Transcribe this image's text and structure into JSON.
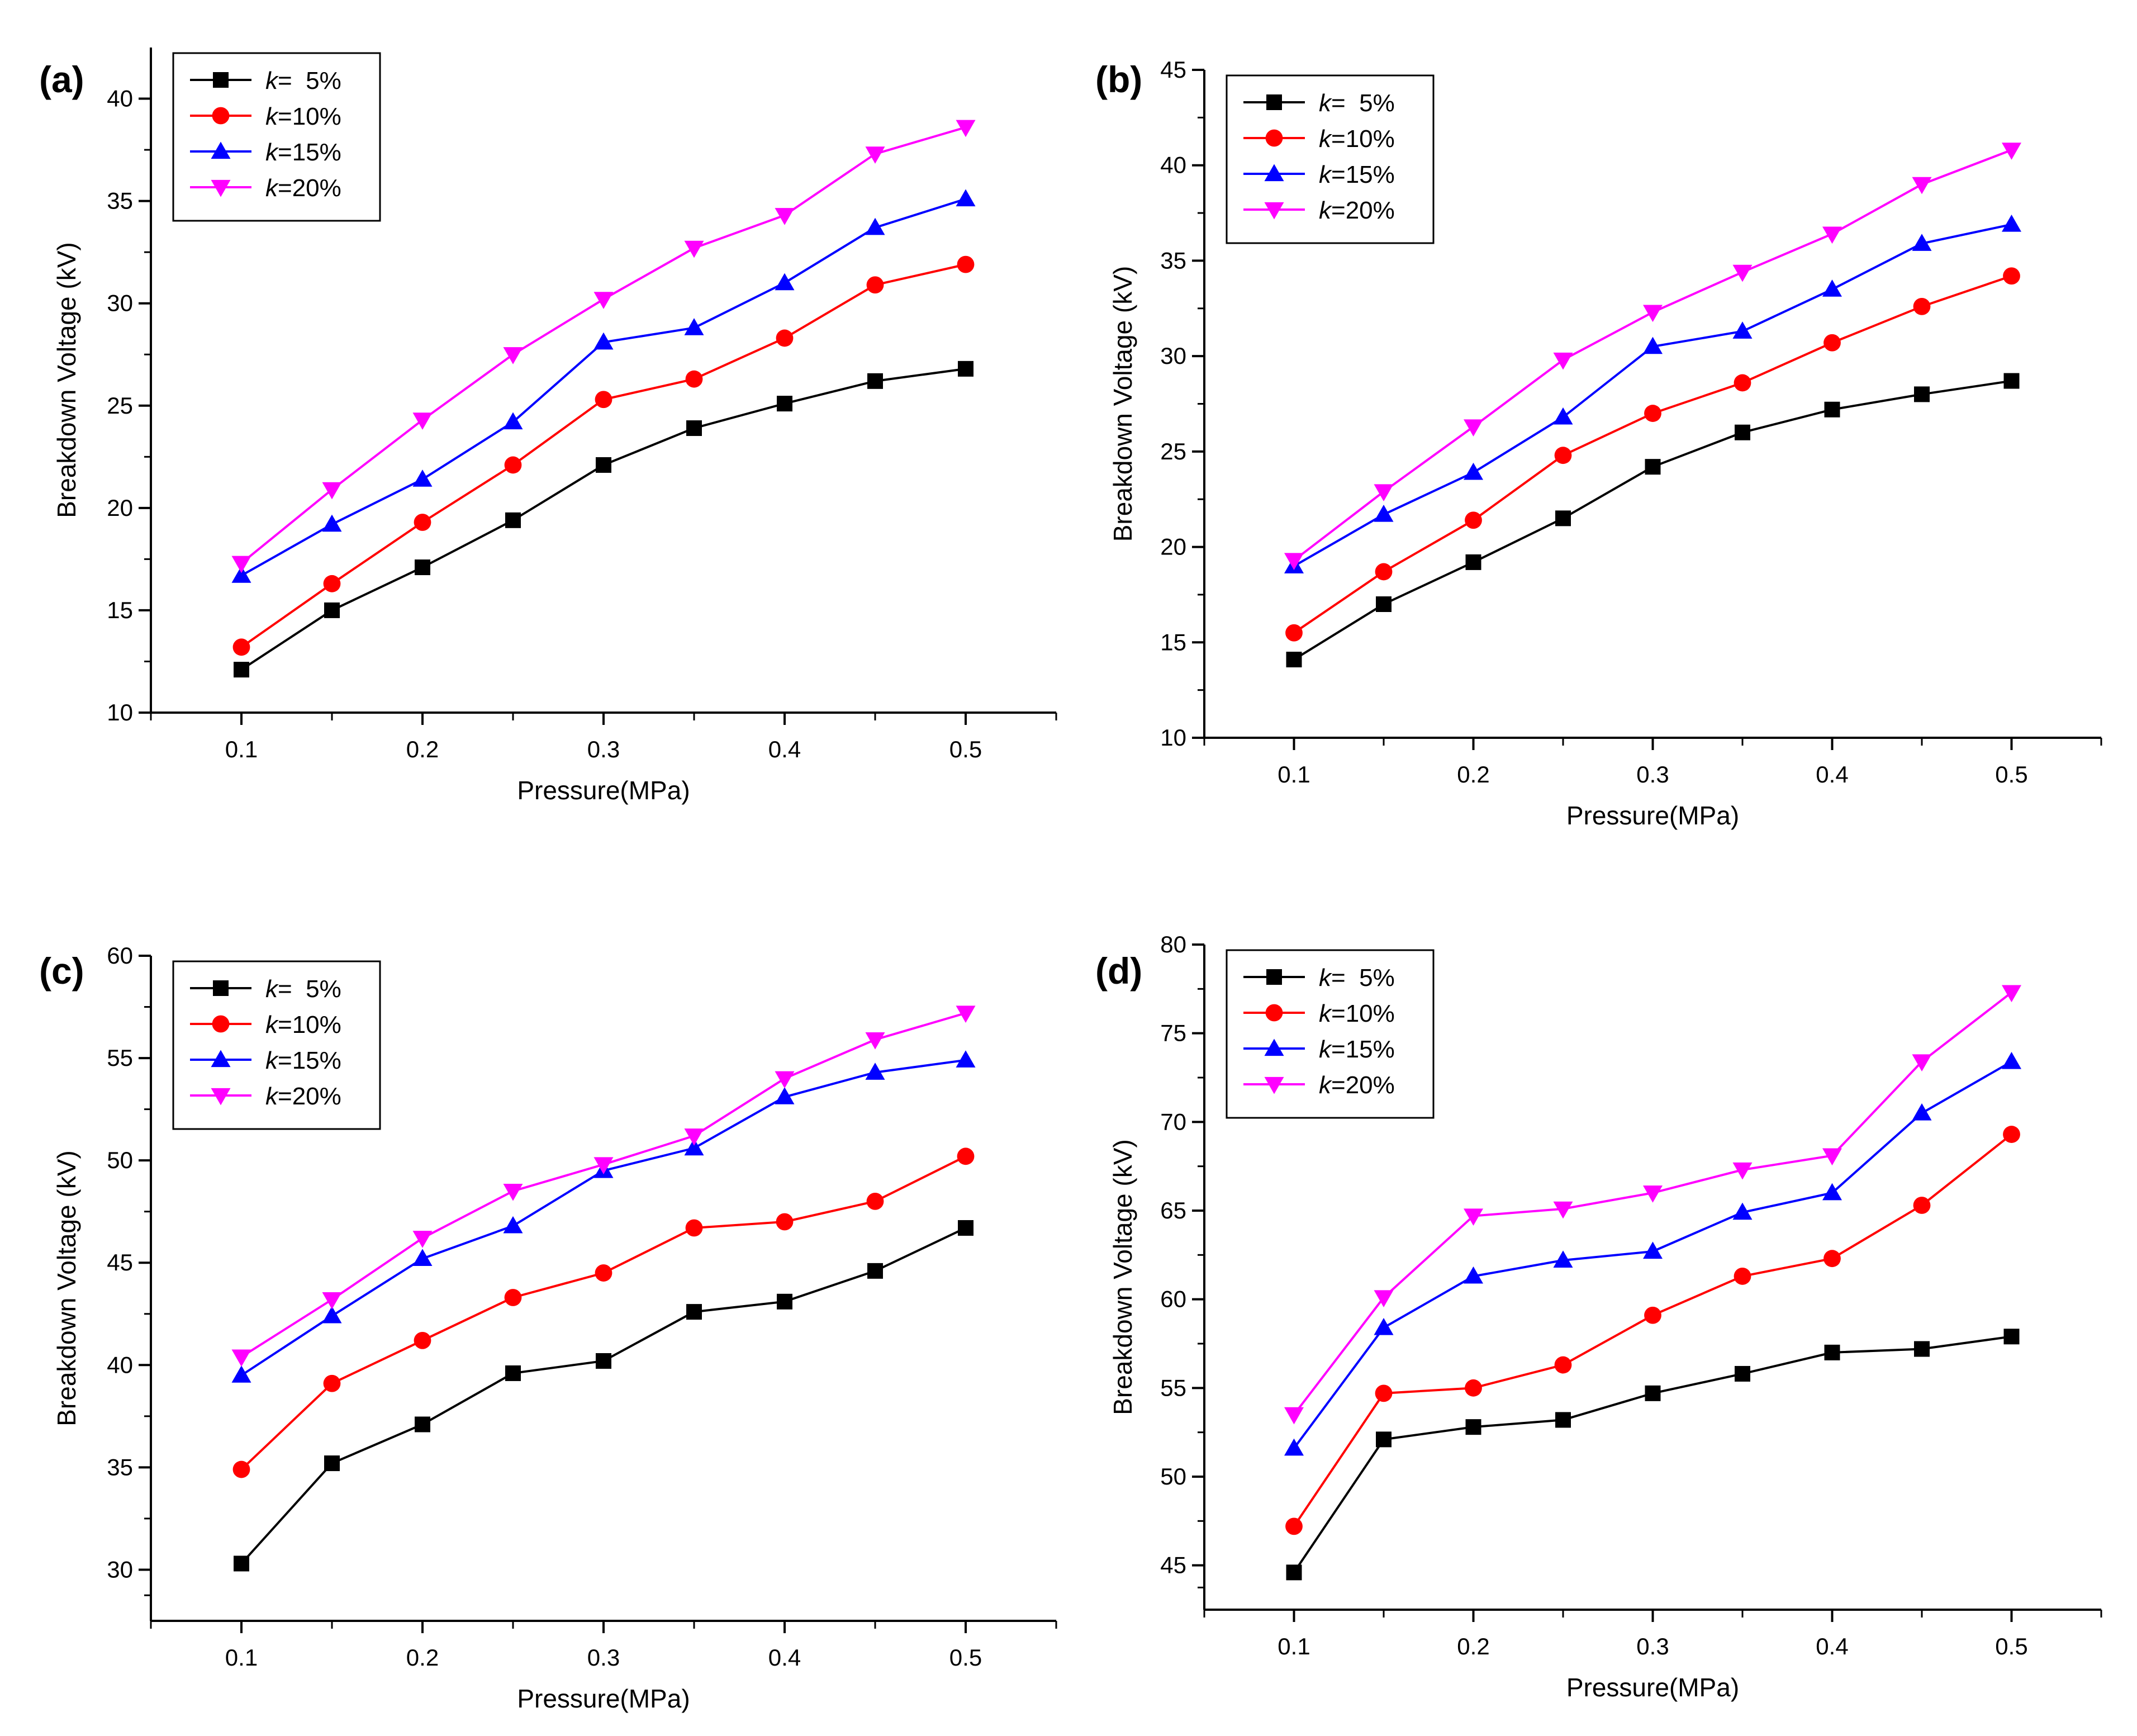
{
  "figure": {
    "xlabel": "Pressure(MPa)",
    "ylabel": "Breakdown Voltage (kV)"
  },
  "chart_data": [
    {
      "type": "line",
      "panel": "(a)",
      "x": [
        0.1,
        0.15,
        0.2,
        0.25,
        0.3,
        0.35,
        0.4,
        0.45,
        0.5
      ],
      "xticks": [
        0.1,
        0.2,
        0.3,
        0.4,
        0.5
      ],
      "xlim": [
        0.05,
        0.55
      ],
      "ylim": [
        10,
        42.5
      ],
      "yticks": [
        10,
        15,
        20,
        25,
        30,
        35,
        40
      ],
      "xlabel": "Pressure(MPa)",
      "ylabel": "Breakdown Voltage (kV)",
      "legend_position": "top-left",
      "series": [
        {
          "name": "k=  5%",
          "prefix": "k",
          "suffix": "=  5%",
          "color": "#000000",
          "marker": "square",
          "values": [
            12.1,
            15.0,
            17.1,
            19.4,
            22.1,
            23.9,
            25.1,
            26.2,
            26.8
          ]
        },
        {
          "name": "k=10%",
          "prefix": "k",
          "suffix": "=10%",
          "color": "#ff0000",
          "marker": "circle",
          "values": [
            13.2,
            16.3,
            19.3,
            22.1,
            25.3,
            26.3,
            28.3,
            30.9,
            31.9
          ]
        },
        {
          "name": "k=15%",
          "prefix": "k",
          "suffix": "=15%",
          "color": "#0000ff",
          "marker": "triangle-up",
          "values": [
            16.7,
            19.2,
            21.4,
            24.2,
            28.1,
            28.8,
            31.0,
            33.7,
            35.1
          ]
        },
        {
          "name": "k=20%",
          "prefix": "k",
          "suffix": "=20%",
          "color": "#ff00ff",
          "marker": "triangle-down",
          "values": [
            17.3,
            20.9,
            24.3,
            27.5,
            30.2,
            32.7,
            34.3,
            37.3,
            38.6
          ]
        }
      ]
    },
    {
      "type": "line",
      "panel": "(b)",
      "x": [
        0.1,
        0.15,
        0.2,
        0.25,
        0.3,
        0.35,
        0.4,
        0.45,
        0.5
      ],
      "xticks": [
        0.1,
        0.2,
        0.3,
        0.4,
        0.5
      ],
      "xlim": [
        0.05,
        0.55
      ],
      "ylim": [
        10,
        45
      ],
      "yticks": [
        10,
        15,
        20,
        25,
        30,
        35,
        40,
        45
      ],
      "xlabel": "Pressure(MPa)",
      "ylabel": "Breakdown Voltage (kV)",
      "legend_position": "top-left",
      "series": [
        {
          "name": "k=  5%",
          "prefix": "k",
          "suffix": "=  5%",
          "color": "#000000",
          "marker": "square",
          "values": [
            14.1,
            17.0,
            19.2,
            21.5,
            24.2,
            26.0,
            27.2,
            28.0,
            28.7
          ]
        },
        {
          "name": "k=10%",
          "prefix": "k",
          "suffix": "=10%",
          "color": "#ff0000",
          "marker": "circle",
          "values": [
            15.5,
            18.7,
            21.4,
            24.8,
            27.0,
            28.6,
            30.7,
            32.6,
            34.2
          ]
        },
        {
          "name": "k=15%",
          "prefix": "k",
          "suffix": "=15%",
          "color": "#0000ff",
          "marker": "triangle-up",
          "values": [
            19.0,
            21.7,
            23.9,
            26.8,
            30.5,
            31.3,
            33.5,
            35.9,
            36.9
          ]
        },
        {
          "name": "k=20%",
          "prefix": "k",
          "suffix": "=20%",
          "color": "#ff00ff",
          "marker": "triangle-down",
          "values": [
            19.3,
            22.9,
            26.3,
            29.8,
            32.3,
            34.4,
            36.4,
            39.0,
            40.8
          ]
        }
      ]
    },
    {
      "type": "line",
      "panel": "(c)",
      "x": [
        0.1,
        0.15,
        0.2,
        0.25,
        0.3,
        0.35,
        0.4,
        0.45,
        0.5
      ],
      "xticks": [
        0.1,
        0.2,
        0.3,
        0.4,
        0.5
      ],
      "xlim": [
        0.05,
        0.55
      ],
      "ylim": [
        27.5,
        60
      ],
      "yticks": [
        30,
        35,
        40,
        45,
        50,
        55,
        60
      ],
      "xlabel": "Pressure(MPa)",
      "ylabel": "Breakdown Voltage (kV)",
      "legend_position": "top-left",
      "series": [
        {
          "name": "k=  5%",
          "prefix": "k",
          "suffix": "=  5%",
          "color": "#000000",
          "marker": "square",
          "values": [
            30.3,
            35.2,
            37.1,
            39.6,
            40.2,
            42.6,
            43.1,
            44.6,
            46.7
          ]
        },
        {
          "name": "k=10%",
          "prefix": "k",
          "suffix": "=10%",
          "color": "#ff0000",
          "marker": "circle",
          "values": [
            34.9,
            39.1,
            41.2,
            43.3,
            44.5,
            46.7,
            47.0,
            48.0,
            50.2
          ]
        },
        {
          "name": "k=15%",
          "prefix": "k",
          "suffix": "=15%",
          "color": "#0000ff",
          "marker": "triangle-up",
          "values": [
            39.5,
            42.4,
            45.2,
            46.8,
            49.5,
            50.6,
            53.1,
            54.3,
            54.9
          ]
        },
        {
          "name": "k=20%",
          "prefix": "k",
          "suffix": "=20%",
          "color": "#ff00ff",
          "marker": "triangle-down",
          "values": [
            40.4,
            43.2,
            46.2,
            48.5,
            49.8,
            51.2,
            54.0,
            55.9,
            57.2
          ]
        }
      ]
    },
    {
      "type": "line",
      "panel": "(d)",
      "x": [
        0.1,
        0.15,
        0.2,
        0.25,
        0.3,
        0.35,
        0.4,
        0.45,
        0.5
      ],
      "xticks": [
        0.1,
        0.2,
        0.3,
        0.4,
        0.5
      ],
      "xlim": [
        0.05,
        0.55
      ],
      "ylim": [
        42.5,
        80
      ],
      "yticks": [
        45,
        50,
        55,
        60,
        65,
        70,
        75,
        80
      ],
      "xlabel": "Pressure(MPa)",
      "ylabel": "Breakdown Voltage (kV)",
      "legend_position": "top-left",
      "series": [
        {
          "name": "k=  5%",
          "prefix": "k",
          "suffix": "=  5%",
          "color": "#000000",
          "marker": "square",
          "values": [
            44.6,
            52.1,
            52.8,
            53.2,
            54.7,
            55.8,
            57.0,
            57.2,
            57.9
          ]
        },
        {
          "name": "k=10%",
          "prefix": "k",
          "suffix": "=10%",
          "color": "#ff0000",
          "marker": "circle",
          "values": [
            47.2,
            54.7,
            55.0,
            56.3,
            59.1,
            61.3,
            62.3,
            65.3,
            69.3
          ]
        },
        {
          "name": "k=15%",
          "prefix": "k",
          "suffix": "=15%",
          "color": "#0000ff",
          "marker": "triangle-up",
          "values": [
            51.6,
            58.4,
            61.3,
            62.2,
            62.7,
            64.9,
            66.0,
            70.5,
            73.4
          ]
        },
        {
          "name": "k=20%",
          "prefix": "k",
          "suffix": "=20%",
          "color": "#ff00ff",
          "marker": "triangle-down",
          "values": [
            53.5,
            60.1,
            64.7,
            65.1,
            66.0,
            67.3,
            68.1,
            73.4,
            77.3
          ]
        }
      ]
    }
  ]
}
